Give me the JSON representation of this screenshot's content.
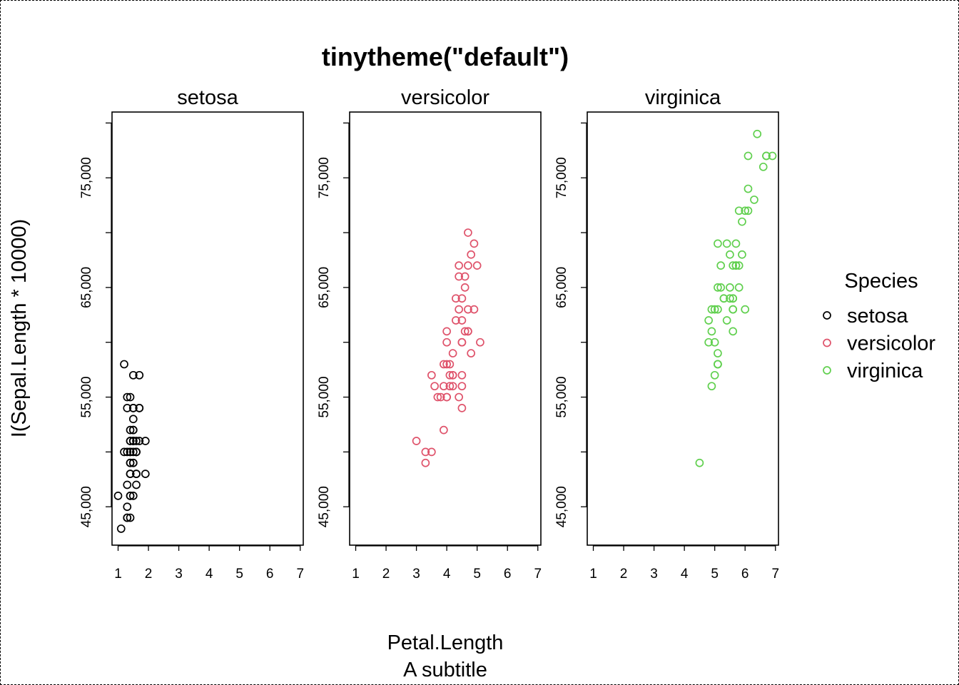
{
  "chart_data": {
    "type": "scatter",
    "title": "tinytheme(\"default\")",
    "xlabel": "Petal.Length",
    "subtitle": "A subtitle",
    "ylabel": "I(Sepal.Length * 10000)",
    "xlim": [
      0.8,
      7.1
    ],
    "ylim": [
      41500,
      81000
    ],
    "x_ticks": [
      "1",
      "2",
      "3",
      "4",
      "5",
      "6",
      "7"
    ],
    "y_ticks": [
      "45,000",
      "55,000",
      "65,000",
      "75,000"
    ],
    "legend": {
      "title": "Species",
      "placement": "right",
      "entries": [
        "setosa",
        "versicolor",
        "virginica"
      ]
    },
    "panels": [
      {
        "name": "setosa",
        "color": "#000000",
        "points": [
          [
            1.4,
            51000
          ],
          [
            1.4,
            49000
          ],
          [
            1.3,
            47000
          ],
          [
            1.5,
            46000
          ],
          [
            1.4,
            50000
          ],
          [
            1.7,
            54000
          ],
          [
            1.4,
            46000
          ],
          [
            1.5,
            50000
          ],
          [
            1.4,
            44000
          ],
          [
            1.5,
            49000
          ],
          [
            1.5,
            54000
          ],
          [
            1.6,
            48000
          ],
          [
            1.4,
            48000
          ],
          [
            1.1,
            43000
          ],
          [
            1.2,
            58000
          ],
          [
            1.5,
            57000
          ],
          [
            1.3,
            54000
          ],
          [
            1.4,
            51000
          ],
          [
            1.7,
            57000
          ],
          [
            1.5,
            51000
          ],
          [
            1.7,
            54000
          ],
          [
            1.5,
            51000
          ],
          [
            1.0,
            46000
          ],
          [
            1.7,
            51000
          ],
          [
            1.9,
            48000
          ],
          [
            1.6,
            50000
          ],
          [
            1.6,
            50000
          ],
          [
            1.5,
            52000
          ],
          [
            1.4,
            52000
          ],
          [
            1.6,
            47000
          ],
          [
            1.6,
            48000
          ],
          [
            1.5,
            54000
          ],
          [
            1.5,
            52000
          ],
          [
            1.4,
            55000
          ],
          [
            1.5,
            49000
          ],
          [
            1.2,
            50000
          ],
          [
            1.3,
            55000
          ],
          [
            1.4,
            49000
          ],
          [
            1.3,
            44000
          ],
          [
            1.5,
            51000
          ],
          [
            1.3,
            50000
          ],
          [
            1.3,
            45000
          ],
          [
            1.3,
            44000
          ],
          [
            1.6,
            50000
          ],
          [
            1.9,
            51000
          ],
          [
            1.4,
            48000
          ],
          [
            1.6,
            51000
          ],
          [
            1.4,
            46000
          ],
          [
            1.5,
            53000
          ],
          [
            1.4,
            50000
          ]
        ]
      },
      {
        "name": "versicolor",
        "color": "#DF536B",
        "points": [
          [
            4.7,
            70000
          ],
          [
            4.5,
            64000
          ],
          [
            4.9,
            69000
          ],
          [
            4.0,
            55000
          ],
          [
            4.6,
            65000
          ],
          [
            4.5,
            57000
          ],
          [
            4.7,
            63000
          ],
          [
            3.3,
            49000
          ],
          [
            4.6,
            66000
          ],
          [
            3.9,
            52000
          ],
          [
            3.5,
            50000
          ],
          [
            4.2,
            59000
          ],
          [
            4.0,
            60000
          ],
          [
            4.7,
            61000
          ],
          [
            3.6,
            56000
          ],
          [
            4.4,
            67000
          ],
          [
            4.5,
            56000
          ],
          [
            4.1,
            58000
          ],
          [
            4.5,
            62000
          ],
          [
            3.9,
            56000
          ],
          [
            4.8,
            59000
          ],
          [
            4.0,
            61000
          ],
          [
            4.9,
            63000
          ],
          [
            4.7,
            61000
          ],
          [
            4.3,
            64000
          ],
          [
            4.4,
            66000
          ],
          [
            4.8,
            68000
          ],
          [
            5.0,
            67000
          ],
          [
            4.5,
            60000
          ],
          [
            3.5,
            57000
          ],
          [
            3.8,
            55000
          ],
          [
            3.7,
            55000
          ],
          [
            3.9,
            58000
          ],
          [
            5.1,
            60000
          ],
          [
            4.5,
            54000
          ],
          [
            4.5,
            60000
          ],
          [
            4.7,
            67000
          ],
          [
            4.4,
            63000
          ],
          [
            4.1,
            56000
          ],
          [
            4.0,
            55000
          ],
          [
            4.4,
            55000
          ],
          [
            4.6,
            61000
          ],
          [
            4.0,
            58000
          ],
          [
            3.3,
            50000
          ],
          [
            4.2,
            56000
          ],
          [
            4.2,
            57000
          ],
          [
            4.2,
            57000
          ],
          [
            4.3,
            62000
          ],
          [
            3.0,
            51000
          ],
          [
            4.1,
            57000
          ]
        ]
      },
      {
        "name": "virginica",
        "color": "#61D04F",
        "points": [
          [
            6.0,
            63000
          ],
          [
            5.1,
            58000
          ],
          [
            5.9,
            71000
          ],
          [
            5.6,
            63000
          ],
          [
            5.8,
            65000
          ],
          [
            6.6,
            76000
          ],
          [
            4.5,
            49000
          ],
          [
            6.3,
            73000
          ],
          [
            5.8,
            67000
          ],
          [
            6.1,
            72000
          ],
          [
            5.1,
            65000
          ],
          [
            5.3,
            64000
          ],
          [
            5.5,
            68000
          ],
          [
            5.0,
            57000
          ],
          [
            5.1,
            58000
          ],
          [
            5.3,
            64000
          ],
          [
            5.5,
            65000
          ],
          [
            6.7,
            77000
          ],
          [
            6.9,
            77000
          ],
          [
            5.0,
            60000
          ],
          [
            5.7,
            69000
          ],
          [
            4.9,
            56000
          ],
          [
            6.7,
            77000
          ],
          [
            4.9,
            63000
          ],
          [
            5.7,
            67000
          ],
          [
            6.0,
            72000
          ],
          [
            4.8,
            62000
          ],
          [
            4.9,
            61000
          ],
          [
            5.6,
            64000
          ],
          [
            5.8,
            72000
          ],
          [
            6.1,
            74000
          ],
          [
            6.4,
            79000
          ],
          [
            5.6,
            64000
          ],
          [
            5.1,
            63000
          ],
          [
            5.6,
            61000
          ],
          [
            6.1,
            77000
          ],
          [
            5.6,
            63000
          ],
          [
            5.5,
            64000
          ],
          [
            4.8,
            60000
          ],
          [
            5.4,
            69000
          ],
          [
            5.6,
            67000
          ],
          [
            5.1,
            69000
          ],
          [
            5.1,
            58000
          ],
          [
            5.9,
            68000
          ],
          [
            5.7,
            67000
          ],
          [
            5.2,
            67000
          ],
          [
            5.0,
            63000
          ],
          [
            5.2,
            65000
          ],
          [
            5.4,
            62000
          ],
          [
            5.1,
            59000
          ]
        ]
      }
    ]
  }
}
